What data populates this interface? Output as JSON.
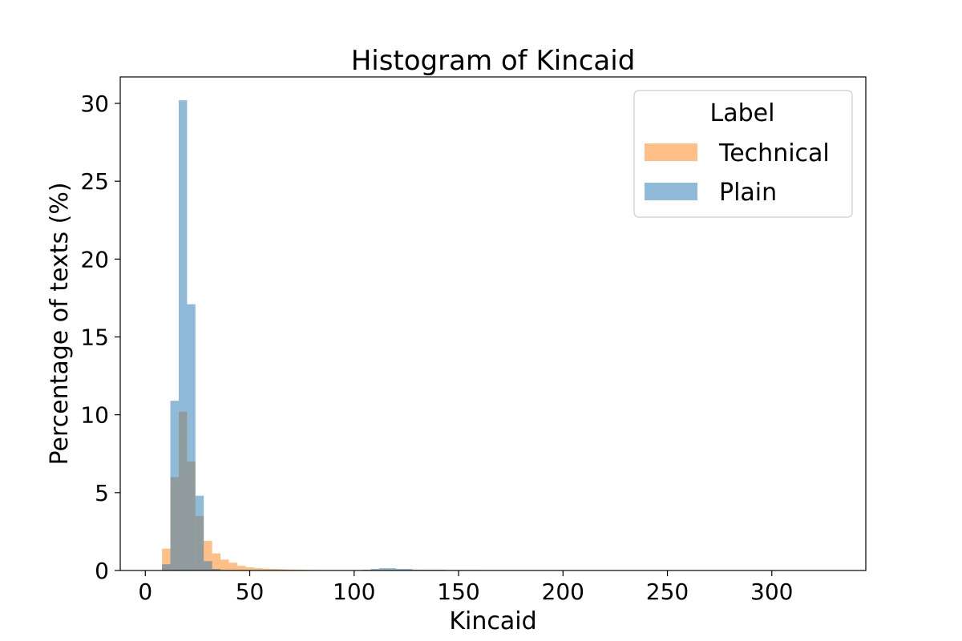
{
  "chart_data": {
    "type": "bar",
    "title": "Histogram of Kincaid",
    "xlabel": "Kincaid",
    "ylabel": "Percentage of texts (%)",
    "xlim": [
      -12,
      345
    ],
    "ylim": [
      0,
      31.7
    ],
    "x_ticks": [
      0,
      50,
      100,
      150,
      200,
      250,
      300
    ],
    "y_ticks": [
      0,
      5,
      10,
      15,
      20,
      25,
      30
    ],
    "grid": false,
    "legend": {
      "title": "Label",
      "placement": "top-right"
    },
    "bin_width": 4,
    "series": [
      {
        "name": "Technical",
        "color": "#ff7f0e",
        "bin_starts": [
          8,
          12,
          16,
          20,
          24,
          28,
          32,
          36,
          40,
          44,
          48,
          52,
          56,
          60,
          64,
          68,
          72,
          76,
          80
        ],
        "values": [
          1.4,
          6.0,
          10.2,
          7.0,
          3.5,
          1.9,
          1.1,
          0.7,
          0.5,
          0.3,
          0.2,
          0.15,
          0.12,
          0.1,
          0.08,
          0.06,
          0.05,
          0.04,
          0.03
        ]
      },
      {
        "name": "Plain",
        "color": "#1f77b4",
        "bin_starts": [
          8,
          12,
          16,
          20,
          24,
          28,
          32,
          104,
          108,
          112,
          116,
          120,
          124,
          128,
          132,
          136,
          140,
          144,
          148,
          152,
          156
        ],
        "values": [
          0.4,
          10.9,
          30.2,
          17.1,
          4.8,
          0.6,
          0.1,
          0.05,
          0.1,
          0.15,
          0.15,
          0.1,
          0.1,
          0.05,
          0.05,
          0.05,
          0.05,
          0.03,
          0.03,
          0.03,
          0.03
        ]
      }
    ]
  }
}
